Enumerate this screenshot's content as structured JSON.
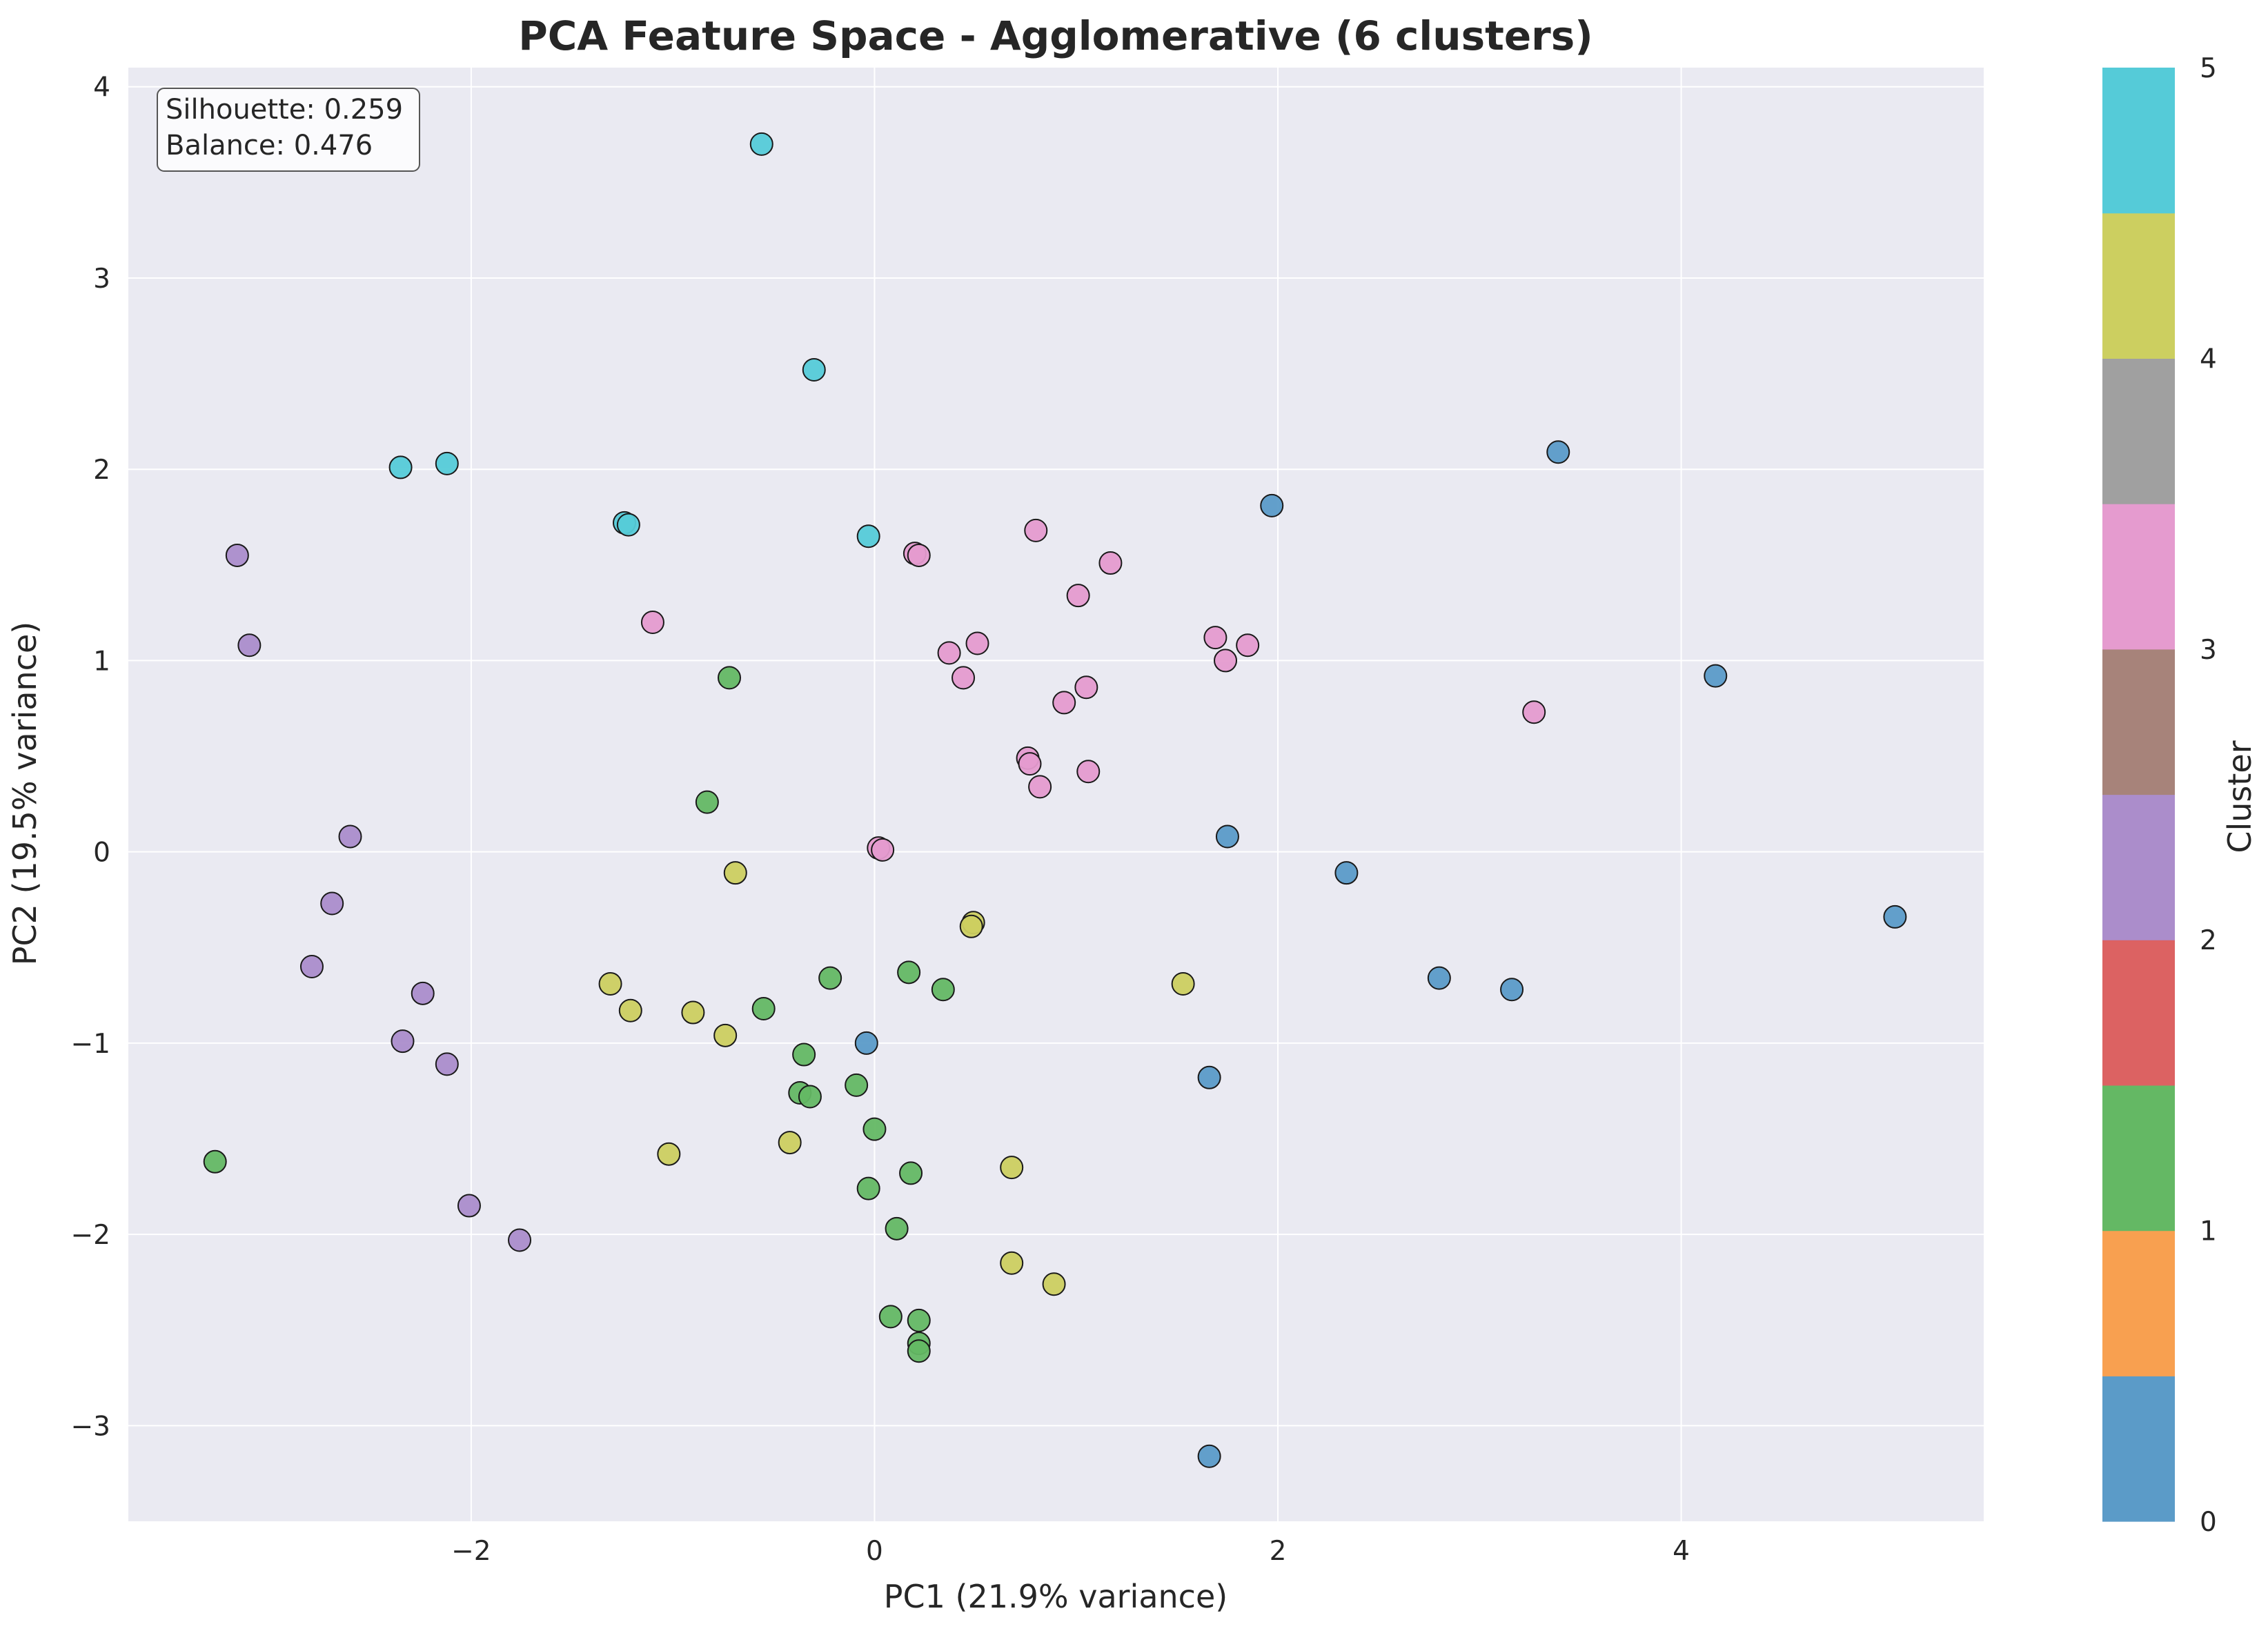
{
  "chart_data": {
    "type": "scatter",
    "title": "PCA Feature Space - Agglomerative (6 clusters)",
    "xlabel": "PC1 (21.9% variance)",
    "ylabel": "PC2 (19.5% variance)",
    "xlim": [
      -3.7,
      5.5
    ],
    "ylim": [
      -3.5,
      4.1
    ],
    "xticks": [
      -2,
      0,
      2,
      4
    ],
    "xtick_labels": [
      "−2",
      "0",
      "2",
      "4"
    ],
    "yticks": [
      -3,
      -2,
      -1,
      0,
      1,
      2,
      3,
      4
    ],
    "ytick_labels": [
      "−3",
      "−2",
      "−1",
      "0",
      "1",
      "2",
      "3",
      "4"
    ],
    "grid": true,
    "annotation": {
      "lines": [
        "Silhouette: 0.259",
        "Balance: 0.476"
      ],
      "position": "top-left"
    },
    "colorbar": {
      "label": "Cluster",
      "ticks": [
        "0",
        "1",
        "2",
        "3",
        "4",
        "5"
      ],
      "colors": [
        "#5b9bc8",
        "#f8a050",
        "#64b864",
        "#dc6262",
        "#ab8dcb",
        "#a7837a",
        "#e59bcf",
        "#a0a0a0",
        "#cccf60",
        "#55cbd8"
      ]
    },
    "cluster_colors": {
      "0": "#5b9bc8",
      "1": "#64b864",
      "2": "#ab8dcb",
      "3": "#e59bcf",
      "4": "#cccf60",
      "5": "#55cbd8"
    },
    "series": [
      {
        "cluster": 0,
        "points": [
          [
            3.39,
            2.09
          ],
          [
            1.97,
            1.81
          ],
          [
            4.17,
            0.92
          ],
          [
            1.75,
            0.08
          ],
          [
            2.34,
            -0.11
          ],
          [
            5.06,
            -0.34
          ],
          [
            2.8,
            -0.66
          ],
          [
            3.16,
            -0.72
          ],
          [
            -0.04,
            -1.0
          ],
          [
            1.66,
            -1.18
          ],
          [
            1.66,
            -3.16
          ]
        ]
      },
      {
        "cluster": 1,
        "points": [
          [
            -0.72,
            0.91
          ],
          [
            -0.83,
            0.26
          ],
          [
            -3.27,
            -1.62
          ],
          [
            -0.22,
            -0.66
          ],
          [
            0.17,
            -0.63
          ],
          [
            0.34,
            -0.72
          ],
          [
            -0.55,
            -0.82
          ],
          [
            -0.35,
            -1.06
          ],
          [
            -0.37,
            -1.26
          ],
          [
            -0.32,
            -1.28
          ],
          [
            -0.09,
            -1.22
          ],
          [
            0.0,
            -1.45
          ],
          [
            -0.03,
            -1.76
          ],
          [
            0.18,
            -1.68
          ],
          [
            0.11,
            -1.97
          ],
          [
            0.08,
            -2.43
          ],
          [
            0.22,
            -2.45
          ],
          [
            0.22,
            -2.57
          ],
          [
            0.22,
            -2.61
          ]
        ]
      },
      {
        "cluster": 2,
        "points": [
          [
            -3.16,
            1.55
          ],
          [
            -3.1,
            1.08
          ],
          [
            -2.6,
            0.08
          ],
          [
            -2.69,
            -0.27
          ],
          [
            -2.79,
            -0.6
          ],
          [
            -2.24,
            -0.74
          ],
          [
            -2.34,
            -0.99
          ],
          [
            -2.12,
            -1.11
          ],
          [
            -2.01,
            -1.85
          ],
          [
            -1.76,
            -2.03
          ]
        ]
      },
      {
        "cluster": 3,
        "points": [
          [
            0.2,
            1.56
          ],
          [
            0.22,
            1.55
          ],
          [
            0.8,
            1.68
          ],
          [
            1.17,
            1.51
          ],
          [
            1.01,
            1.34
          ],
          [
            -1.1,
            1.2
          ],
          [
            0.37,
            1.04
          ],
          [
            0.51,
            1.09
          ],
          [
            1.69,
            1.12
          ],
          [
            1.85,
            1.08
          ],
          [
            1.74,
            1.0
          ],
          [
            0.44,
            0.91
          ],
          [
            1.05,
            0.86
          ],
          [
            0.94,
            0.78
          ],
          [
            3.27,
            0.73
          ],
          [
            0.76,
            0.49
          ],
          [
            0.77,
            0.46
          ],
          [
            1.06,
            0.42
          ],
          [
            0.82,
            0.34
          ],
          [
            0.02,
            0.02
          ],
          [
            0.04,
            0.01
          ]
        ]
      },
      {
        "cluster": 4,
        "points": [
          [
            -0.69,
            -0.11
          ],
          [
            0.49,
            -0.37
          ],
          [
            0.48,
            -0.39
          ],
          [
            1.53,
            -0.69
          ],
          [
            -1.31,
            -0.69
          ],
          [
            -1.21,
            -0.83
          ],
          [
            -0.9,
            -0.84
          ],
          [
            -0.74,
            -0.96
          ],
          [
            -1.02,
            -1.58
          ],
          [
            -0.42,
            -1.52
          ],
          [
            0.68,
            -1.65
          ],
          [
            0.68,
            -2.15
          ],
          [
            0.89,
            -2.26
          ]
        ]
      },
      {
        "cluster": 5,
        "points": [
          [
            -0.56,
            3.7
          ],
          [
            -0.3,
            2.52
          ],
          [
            -2.35,
            2.01
          ],
          [
            -2.12,
            2.03
          ],
          [
            -1.24,
            1.72
          ],
          [
            -1.22,
            1.71
          ],
          [
            -0.03,
            1.65
          ]
        ]
      }
    ]
  }
}
